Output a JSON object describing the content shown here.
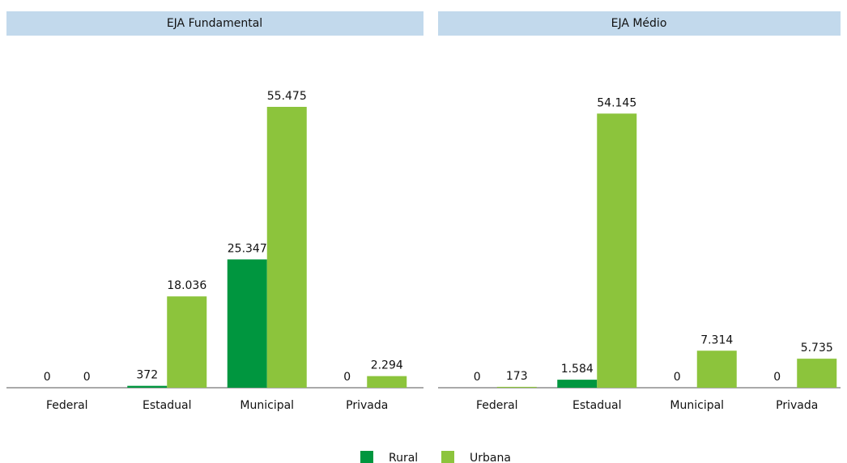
{
  "chart_data": [
    {
      "type": "bar",
      "title": "EJA Fundamental",
      "categories": [
        "Federal",
        "Estadual",
        "Municipal",
        "Privada"
      ],
      "series": [
        {
          "name": "Rural",
          "color": "#00963f",
          "values": [
            0,
            372,
            25347,
            0
          ],
          "value_labels": [
            "0",
            "372",
            "25.347",
            "0"
          ]
        },
        {
          "name": "Urbana",
          "color": "#8cc43c",
          "values": [
            0,
            18036,
            55475,
            2294
          ],
          "value_labels": [
            "0",
            "18.036",
            "55.475",
            "2.294"
          ]
        }
      ]
    },
    {
      "type": "bar",
      "title": "EJA Médio",
      "categories": [
        "Federal",
        "Estadual",
        "Municipal",
        "Privada"
      ],
      "series": [
        {
          "name": "Rural",
          "color": "#00963f",
          "values": [
            0,
            1584,
            0,
            0
          ],
          "value_labels": [
            "0",
            "1.584",
            "0",
            "0"
          ]
        },
        {
          "name": "Urbana",
          "color": "#8cc43c",
          "values": [
            173,
            54145,
            7314,
            5735
          ],
          "value_labels": [
            "173",
            "54.145",
            "7.314",
            "5.735"
          ]
        }
      ]
    }
  ]
}
